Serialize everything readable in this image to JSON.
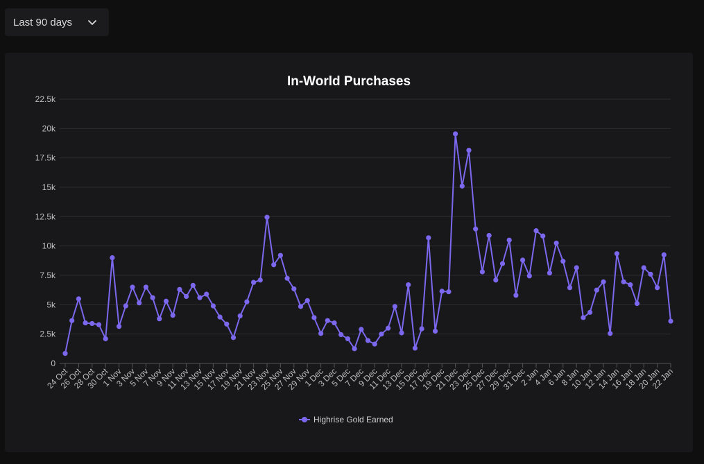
{
  "filter": {
    "selected": "Last 90 days",
    "icon": "chevron-down-icon"
  },
  "chart_data": {
    "type": "line",
    "title": "In-World Purchases",
    "xlabel": "",
    "ylabel": "",
    "ylim": [
      0,
      22500
    ],
    "yticks": [
      "0",
      "2.5k",
      "5k",
      "7.5k",
      "10k",
      "12.5k",
      "15k",
      "17.5k",
      "20k",
      "22.5k"
    ],
    "yticks_values": [
      0,
      2500,
      5000,
      7500,
      10000,
      12500,
      15000,
      17500,
      20000,
      22500
    ],
    "grid": true,
    "legend_position": "bottom",
    "line_color": "#7b68ee",
    "x_tick_labels": [
      "24 Oct",
      "26 Oct",
      "28 Oct",
      "30 Oct",
      "1 Nov",
      "3 Nov",
      "5 Nov",
      "7 Nov",
      "9 Nov",
      "11 Nov",
      "13 Nov",
      "15 Nov",
      "17 Nov",
      "19 Nov",
      "21 Nov",
      "23 Nov",
      "25 Nov",
      "27 Nov",
      "29 Nov",
      "1 Dec",
      "3 Dec",
      "5 Dec",
      "7 Dec",
      "9 Dec",
      "11 Dec",
      "13 Dec",
      "15 Dec",
      "17 Dec",
      "19 Dec",
      "21 Dec",
      "23 Dec",
      "25 Dec",
      "27 Dec",
      "29 Dec",
      "31 Dec",
      "2 Jan",
      "4 Jan",
      "6 Jan",
      "8 Jan",
      "10 Jan",
      "12 Jan",
      "14 Jan",
      "16 Jan",
      "18 Jan",
      "20 Jan",
      "22 Jan"
    ],
    "series": [
      {
        "name": "Highrise Gold Earned",
        "values": [
          850,
          3650,
          5500,
          3450,
          3400,
          3300,
          2100,
          9000,
          3150,
          4900,
          6500,
          5150,
          6500,
          5600,
          3800,
          5300,
          4100,
          6300,
          5700,
          6650,
          5600,
          5900,
          4900,
          3950,
          3350,
          2200,
          4050,
          5250,
          6900,
          7100,
          12450,
          8400,
          9200,
          7250,
          6350,
          4850,
          5350,
          3900,
          2550,
          3650,
          3450,
          2450,
          2100,
          1250,
          2900,
          1950,
          1650,
          2500,
          3000,
          4850,
          2600,
          6700,
          1300,
          2950,
          10700,
          2750,
          6150,
          6100,
          19550,
          15100,
          18150,
          11450,
          7800,
          10900,
          7100,
          8500,
          10500,
          5800,
          8800,
          7450,
          11300,
          10850,
          7700,
          10250,
          8700,
          6450,
          8150,
          3900,
          4350,
          6250,
          6950,
          2550,
          9350,
          6950,
          6700,
          5100,
          8150,
          7600,
          6450,
          9250,
          3600
        ]
      }
    ]
  }
}
